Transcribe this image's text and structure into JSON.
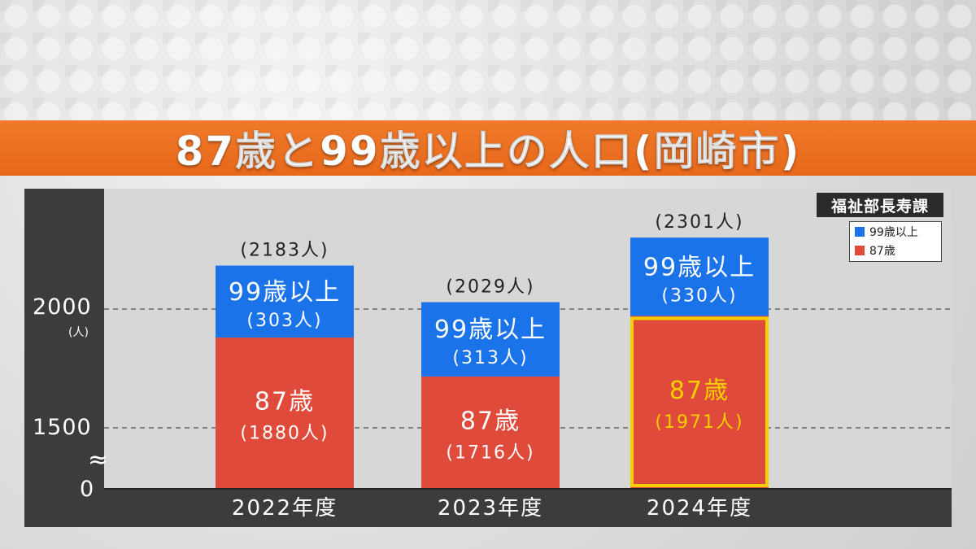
{
  "title": "87歳と99歳以上の人口(岡崎市)",
  "source": "福祉部長寿課",
  "legend": [
    {
      "label": "99歳以上",
      "color": "#1a73e8"
    },
    {
      "label": "87歳",
      "color": "#e04a3a"
    }
  ],
  "chart_data": {
    "type": "bar",
    "stacked": true,
    "categories": [
      "2022年度",
      "2023年度",
      "2024年度"
    ],
    "series": [
      {
        "name": "87歳",
        "values": [
          1880,
          1716,
          1971
        ],
        "color": "#e04a3a"
      },
      {
        "name": "99歳以上",
        "values": [
          303,
          313,
          330
        ],
        "color": "#1a73e8"
      }
    ],
    "totals": [
      2183,
      2029,
      2301
    ],
    "total_labels": [
      "(2183人)",
      "(2029人)",
      "(2301人)"
    ],
    "labels_87": [
      "(1880人)",
      "(1716人)",
      "(1971人)"
    ],
    "labels_99": [
      "(303人)",
      "(313人)",
      "(330人)"
    ],
    "segment_names": {
      "s87": "87歳",
      "s99": "99歳以上"
    },
    "highlight_index": 2,
    "highlight_color": "#f5d000",
    "y_ticks": [
      "2000",
      "1500",
      "0"
    ],
    "y_unit": "(人)",
    "y_axis_break": true,
    "grid": "dashed"
  }
}
